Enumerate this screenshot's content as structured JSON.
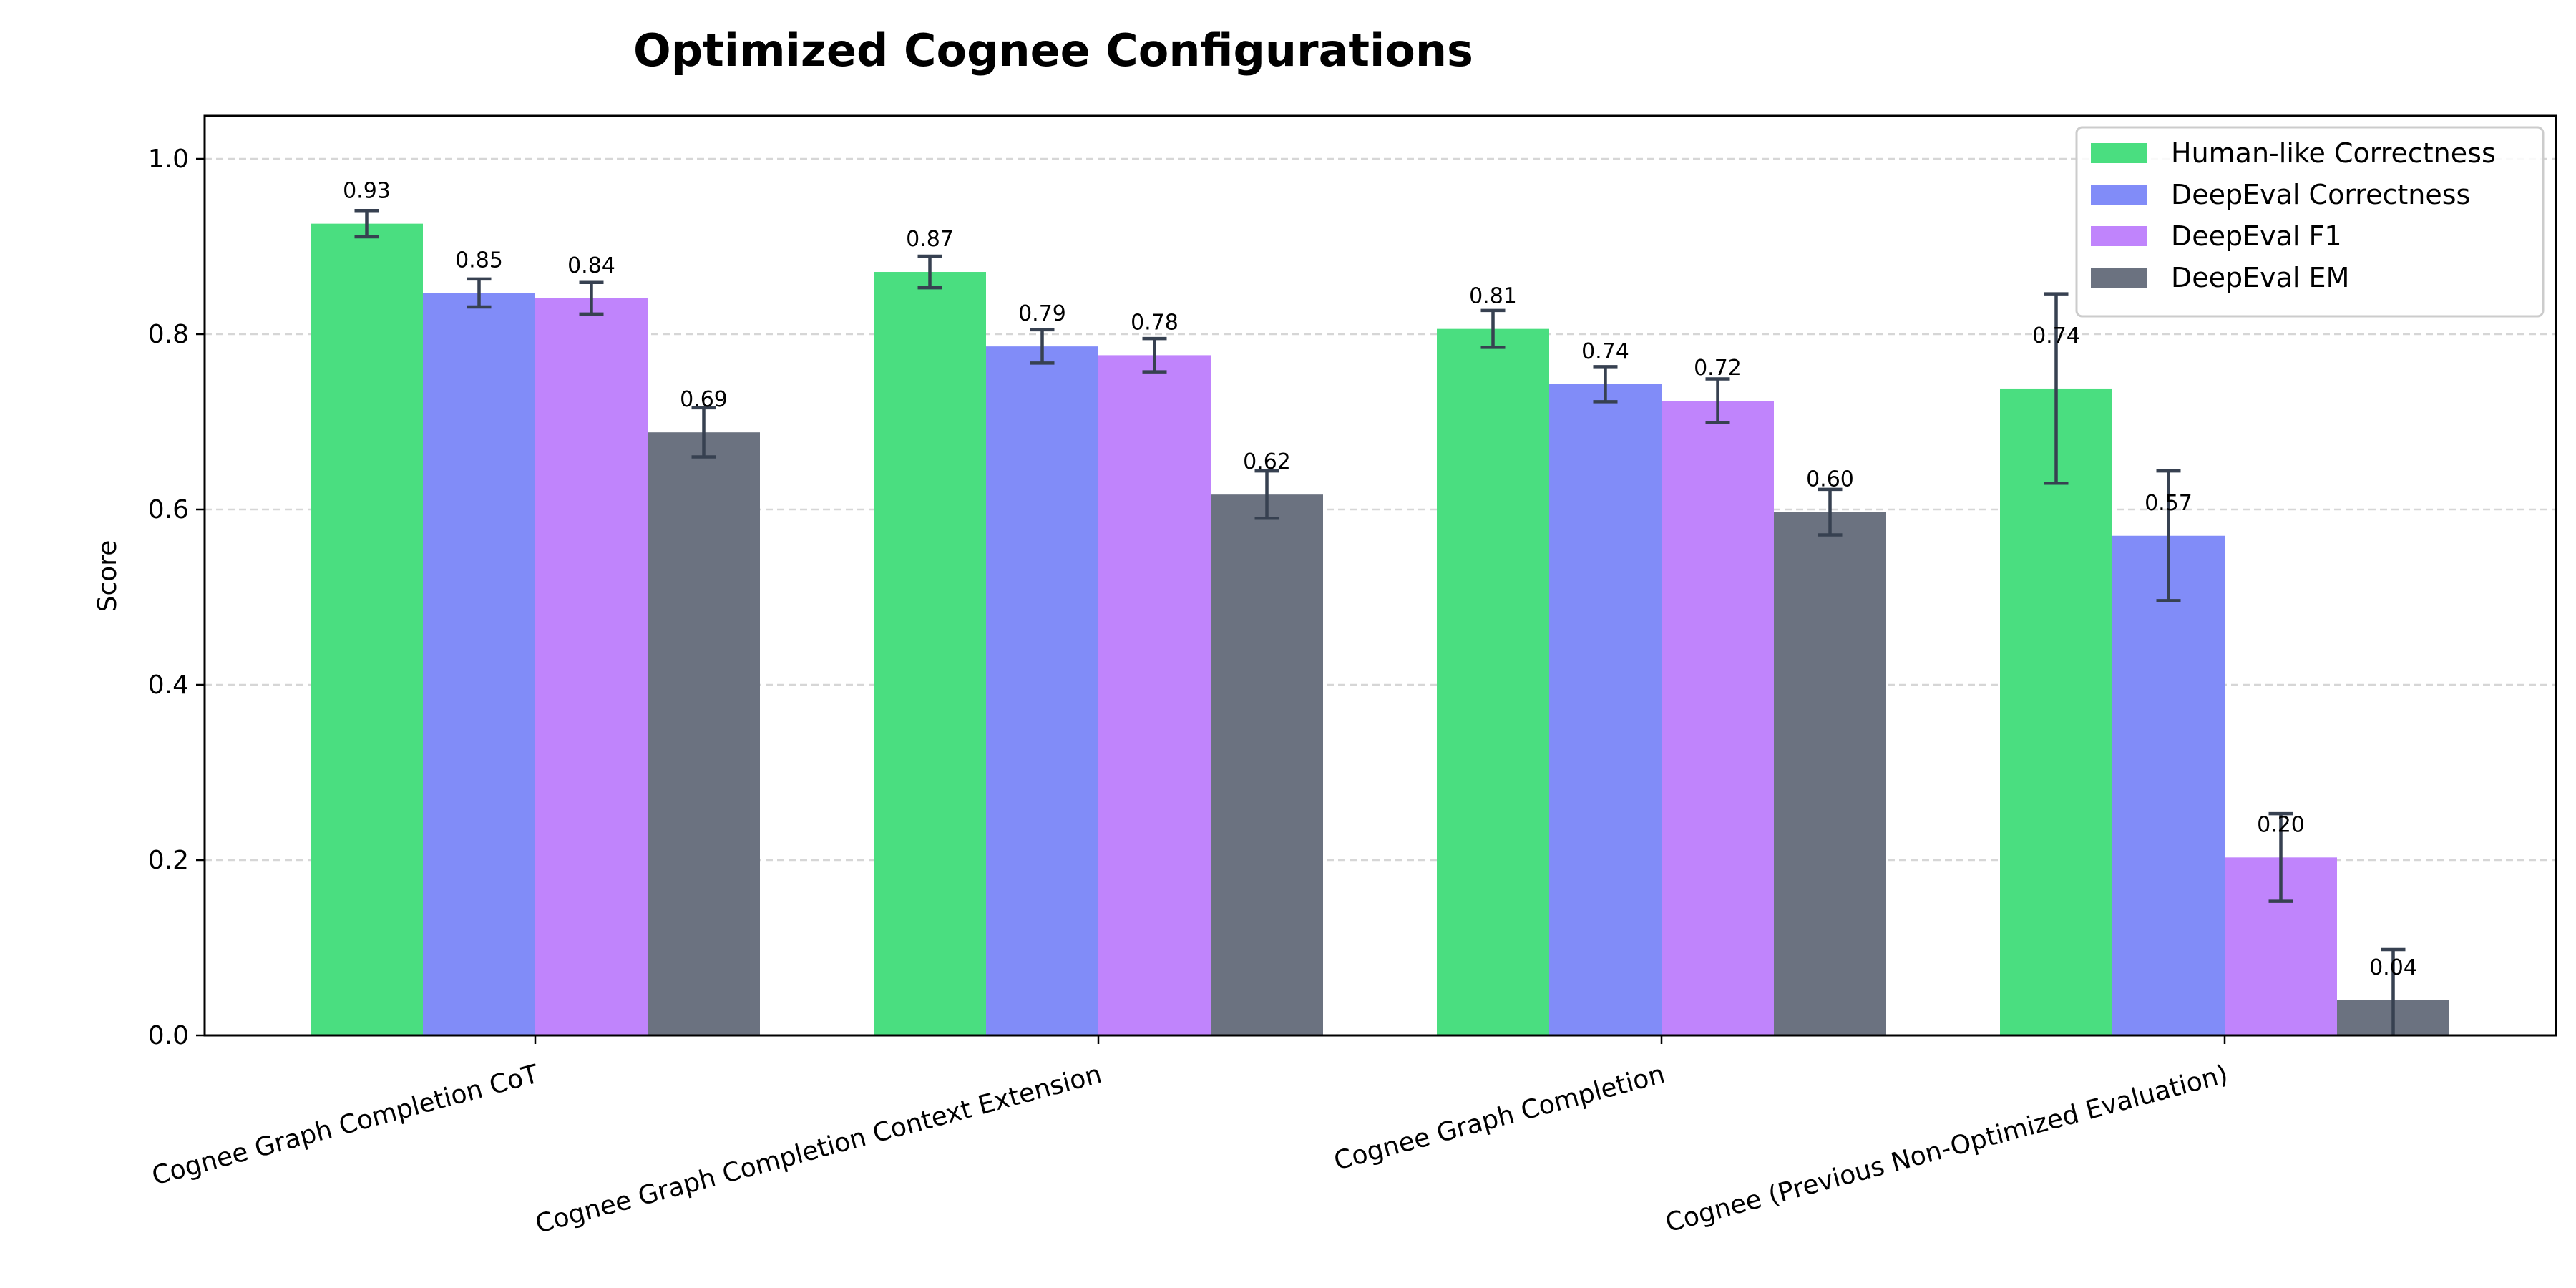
{
  "chart_data": {
    "type": "bar",
    "title": "Optimized Cognee Configurations",
    "xlabel": "",
    "ylabel": "Score",
    "ylim": [
      0,
      1.05
    ],
    "yticks": [
      "0.0",
      "0.2",
      "0.4",
      "0.6",
      "0.8",
      "1.0"
    ],
    "grid": "y, dashed",
    "legend_position": "top-right",
    "categories": [
      "Cognee Graph Completion CoT",
      "Cognee Graph Completion Context Extension",
      "Cognee Graph Completion",
      "Cognee (Previous Non-Optimized Evaluation)"
    ],
    "series": [
      {
        "name": "Human-like Correctness",
        "color": "#4ade80",
        "values": [
          0.926,
          0.871,
          0.806,
          0.738
        ],
        "errors": [
          0.015,
          0.018,
          0.021,
          0.108
        ],
        "labels": [
          "0.93",
          "0.87",
          "0.81",
          "0.74"
        ]
      },
      {
        "name": "DeepEval Correctness",
        "color": "#818cf8",
        "values": [
          0.847,
          0.786,
          0.743,
          0.57
        ],
        "errors": [
          0.016,
          0.019,
          0.02,
          0.074
        ],
        "labels": [
          "0.85",
          "0.79",
          "0.74",
          "0.57"
        ]
      },
      {
        "name": "DeepEval F1",
        "color": "#c084fc",
        "values": [
          0.841,
          0.776,
          0.724,
          0.203
        ],
        "errors": [
          0.018,
          0.019,
          0.025,
          0.05
        ],
        "labels": [
          "0.84",
          "0.78",
          "0.72",
          "0.20"
        ]
      },
      {
        "name": "DeepEval EM",
        "color": "#6b7280",
        "values": [
          0.688,
          0.617,
          0.597,
          0.04
        ],
        "errors": [
          0.028,
          0.027,
          0.026,
          0.058
        ],
        "labels": [
          "0.69",
          "0.62",
          "0.60",
          "0.04"
        ]
      }
    ],
    "error_bar_color": "#374151"
  }
}
